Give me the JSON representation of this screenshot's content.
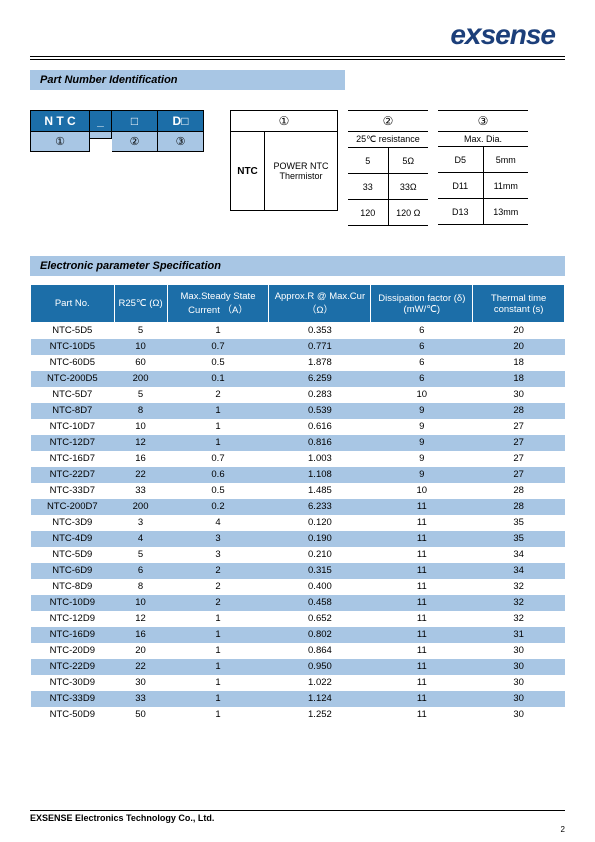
{
  "logo_text": "exsense",
  "section1_title": "Part Number Identification",
  "pni": {
    "top": {
      "c1": "N T C",
      "c2": "_",
      "c3": "□",
      "c4": "D□"
    },
    "bot": {
      "c1": "①",
      "c2": "",
      "c3": "②",
      "c4": "③"
    },
    "col1": {
      "head": "①",
      "ntc": "NTC",
      "desc": "POWER NTC Thermistor"
    },
    "col2": {
      "head": "②",
      "sub": "25℃ resistance",
      "rows": [
        [
          "5",
          "5Ω"
        ],
        [
          "33",
          "33Ω"
        ],
        [
          "120",
          "120 Ω"
        ]
      ]
    },
    "col3": {
      "head": "③",
      "sub": "Max. Dia.",
      "rows": [
        [
          "D5",
          "5mm"
        ],
        [
          "D11",
          "11mm"
        ],
        [
          "D13",
          "13mm"
        ]
      ]
    }
  },
  "section2_title": "Electronic parameter Specification",
  "spec": {
    "columns": [
      "Part No.",
      "R25℃ (Ω)",
      "Max.Steady State Current （A）",
      "Approx.R @ Max.Cur （Ω）",
      "Dissipation factor (δ)(mW/℃)",
      "Thermal time constant (s)"
    ],
    "col_widths": [
      "82",
      "52",
      "100",
      "100",
      "100",
      "90"
    ],
    "rows": [
      [
        "NTC-5D5",
        "5",
        "1",
        "0.353",
        "6",
        "20"
      ],
      [
        "NTC-10D5",
        "10",
        "0.7",
        "0.771",
        "6",
        "20"
      ],
      [
        "NTC-60D5",
        "60",
        "0.5",
        "1.878",
        "6",
        "18"
      ],
      [
        "NTC-200D5",
        "200",
        "0.1",
        "6.259",
        "6",
        "18"
      ],
      [
        "NTC-5D7",
        "5",
        "2",
        "0.283",
        "10",
        "30"
      ],
      [
        "NTC-8D7",
        "8",
        "1",
        "0.539",
        "9",
        "28"
      ],
      [
        "NTC-10D7",
        "10",
        "1",
        "0.616",
        "9",
        "27"
      ],
      [
        "NTC-12D7",
        "12",
        "1",
        "0.816",
        "9",
        "27"
      ],
      [
        "NTC-16D7",
        "16",
        "0.7",
        "1.003",
        "9",
        "27"
      ],
      [
        "NTC-22D7",
        "22",
        "0.6",
        "1.108",
        "9",
        "27"
      ],
      [
        "NTC-33D7",
        "33",
        "0.5",
        "1.485",
        "10",
        "28"
      ],
      [
        "NTC-200D7",
        "200",
        "0.2",
        "6.233",
        "11",
        "28"
      ],
      [
        "NTC-3D9",
        "3",
        "4",
        "0.120",
        "11",
        "35"
      ],
      [
        "NTC-4D9",
        "4",
        "3",
        "0.190",
        "11",
        "35"
      ],
      [
        "NTC-5D9",
        "5",
        "3",
        "0.210",
        "11",
        "34"
      ],
      [
        "NTC-6D9",
        "6",
        "2",
        "0.315",
        "11",
        "34"
      ],
      [
        "NTC-8D9",
        "8",
        "2",
        "0.400",
        "11",
        "32"
      ],
      [
        "NTC-10D9",
        "10",
        "2",
        "0.458",
        "11",
        "32"
      ],
      [
        "NTC-12D9",
        "12",
        "1",
        "0.652",
        "11",
        "32"
      ],
      [
        "NTC-16D9",
        "16",
        "1",
        "0.802",
        "11",
        "31"
      ],
      [
        "NTC-20D9",
        "20",
        "1",
        "0.864",
        "11",
        "30"
      ],
      [
        "NTC-22D9",
        "22",
        "1",
        "0.950",
        "11",
        "30"
      ],
      [
        "NTC-30D9",
        "30",
        "1",
        "1.022",
        "11",
        "30"
      ],
      [
        "NTC-33D9",
        "33",
        "1",
        "1.124",
        "11",
        "30"
      ],
      [
        "NTC-50D9",
        "50",
        "1",
        "1.252",
        "11",
        "30"
      ]
    ],
    "header_bg": "#1c6ea8",
    "row_alt_bg": "#a8c6e4"
  },
  "footer": {
    "company": "EXSENSE    Electronics Technology Co., Ltd.",
    "page": "2"
  }
}
